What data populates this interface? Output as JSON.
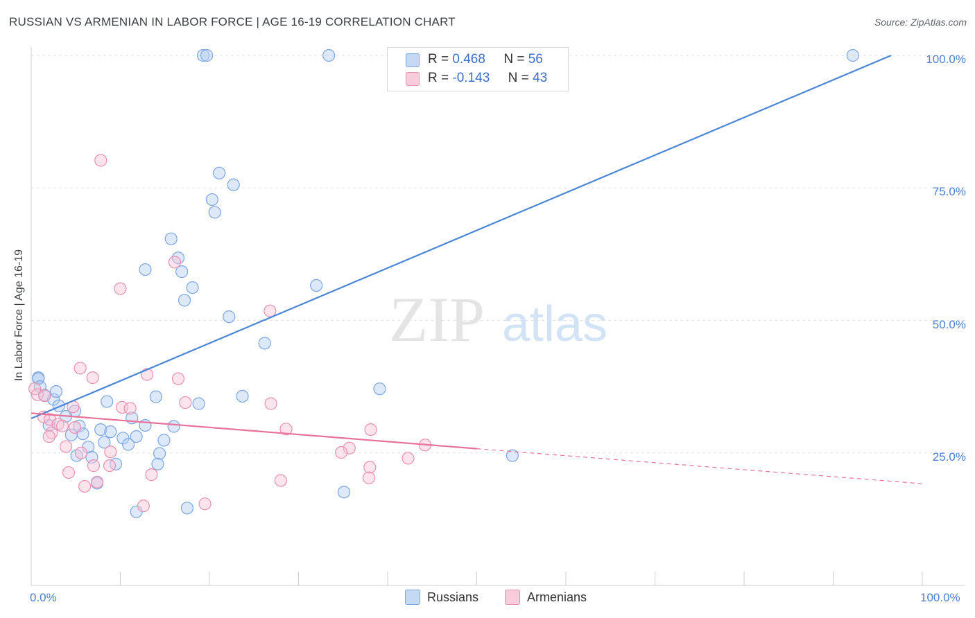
{
  "title": "RUSSIAN VS ARMENIAN IN LABOR FORCE | AGE 16-19 CORRELATION CHART",
  "source": "Source: ZipAtlas.com",
  "watermark": {
    "zip": "ZIP",
    "atlas": "atlas"
  },
  "legend_top": {
    "rows": [
      {
        "r_label": "R =",
        "r_value": "0.468",
        "n_label": "N =",
        "n_value": "56"
      },
      {
        "r_label": "R =",
        "r_value": "-0.143",
        "n_label": "N =",
        "n_value": "43"
      }
    ]
  },
  "legend_bottom": {
    "russians": "Russians",
    "armenians": "Armenians"
  },
  "chart_data": {
    "type": "scatter",
    "title": "RUSSIAN VS ARMENIAN IN LABOR FORCE | AGE 16-19 CORRELATION CHART",
    "xlabel": "",
    "ylabel": "In Labor Force | Age 16-19",
    "xlim": [
      0,
      100
    ],
    "ylim": [
      0,
      105
    ],
    "x_tick_labels": [
      "0.0%",
      "100.0%"
    ],
    "y_ticks": [
      25,
      50,
      75,
      100
    ],
    "y_tick_labels": [
      "25.0%",
      "50.0%",
      "75.0%",
      "100.0%"
    ],
    "grid": "horizontal dashed",
    "legend_placement": "top-center",
    "colors": {
      "russians": "#4a86d8",
      "armenians": "#e8709a"
    },
    "series": [
      {
        "name": "Russians",
        "color": "#4a86d8",
        "trend": {
          "x": [
            0,
            96.5
          ],
          "y": [
            31.5,
            100
          ]
        },
        "points": [
          [
            19.3,
            100
          ],
          [
            19.7,
            100
          ],
          [
            33.4,
            100
          ],
          [
            92.2,
            100
          ],
          [
            21.1,
            77.8
          ],
          [
            22.7,
            75.6
          ],
          [
            20.3,
            72.8
          ],
          [
            20.6,
            70.4
          ],
          [
            15.7,
            65.4
          ],
          [
            16.5,
            61.8
          ],
          [
            12.8,
            59.6
          ],
          [
            16.9,
            59.2
          ],
          [
            18.1,
            56.2
          ],
          [
            32.0,
            56.6
          ],
          [
            17.2,
            53.8
          ],
          [
            22.2,
            50.7
          ],
          [
            26.2,
            45.7
          ],
          [
            0.8,
            39.2
          ],
          [
            0.8,
            39.0
          ],
          [
            39.1,
            37.1
          ],
          [
            1.5,
            35.9
          ],
          [
            2.5,
            35.1
          ],
          [
            14.0,
            35.6
          ],
          [
            8.5,
            34.7
          ],
          [
            23.7,
            35.7
          ],
          [
            18.8,
            34.3
          ],
          [
            3.1,
            33.9
          ],
          [
            4.9,
            32.9
          ],
          [
            3.9,
            31.9
          ],
          [
            11.3,
            31.6
          ],
          [
            2.0,
            30.2
          ],
          [
            5.4,
            30.1
          ],
          [
            12.8,
            30.2
          ],
          [
            16.0,
            30.0
          ],
          [
            7.8,
            29.4
          ],
          [
            8.9,
            29.0
          ],
          [
            5.8,
            28.6
          ],
          [
            4.5,
            28.4
          ],
          [
            11.8,
            28.1
          ],
          [
            10.3,
            27.8
          ],
          [
            14.9,
            27.4
          ],
          [
            8.2,
            27.0
          ],
          [
            10.9,
            26.6
          ],
          [
            6.4,
            26.1
          ],
          [
            14.4,
            24.9
          ],
          [
            6.8,
            24.2
          ],
          [
            5.1,
            24.5
          ],
          [
            9.5,
            22.9
          ],
          [
            14.2,
            22.9
          ],
          [
            54.0,
            24.5
          ],
          [
            7.4,
            19.3
          ],
          [
            35.1,
            17.6
          ],
          [
            11.8,
            13.9
          ],
          [
            17.5,
            14.6
          ],
          [
            2.8,
            36.6
          ],
          [
            1.0,
            37.5
          ]
        ]
      },
      {
        "name": "Armenians",
        "color": "#e8709a",
        "trend": {
          "x": [
            0,
            50
          ],
          "y": [
            32.5,
            25.8
          ]
        },
        "trend_dashed": {
          "x": [
            50,
            100
          ],
          "y": [
            25.8,
            19.2
          ]
        },
        "points": [
          [
            7.8,
            80.2
          ],
          [
            10.0,
            56.0
          ],
          [
            16.1,
            61.0
          ],
          [
            26.8,
            51.8
          ],
          [
            5.5,
            41.0
          ],
          [
            6.9,
            39.2
          ],
          [
            13.0,
            39.8
          ],
          [
            16.5,
            39.0
          ],
          [
            0.4,
            37.1
          ],
          [
            0.7,
            36.0
          ],
          [
            1.5,
            35.8
          ],
          [
            17.3,
            34.5
          ],
          [
            26.9,
            34.3
          ],
          [
            4.7,
            33.7
          ],
          [
            10.2,
            33.6
          ],
          [
            11.1,
            33.4
          ],
          [
            1.4,
            31.8
          ],
          [
            2.1,
            31.3
          ],
          [
            3.0,
            30.4
          ],
          [
            3.5,
            30.1
          ],
          [
            4.9,
            29.8
          ],
          [
            28.6,
            29.5
          ],
          [
            38.1,
            29.4
          ],
          [
            2.3,
            28.8
          ],
          [
            2.0,
            28.1
          ],
          [
            3.9,
            26.2
          ],
          [
            5.6,
            25.0
          ],
          [
            8.9,
            25.2
          ],
          [
            35.7,
            25.9
          ],
          [
            34.8,
            25.1
          ],
          [
            38.0,
            22.3
          ],
          [
            42.3,
            24.0
          ],
          [
            44.2,
            26.5
          ],
          [
            7.0,
            22.6
          ],
          [
            8.8,
            22.6
          ],
          [
            4.2,
            21.3
          ],
          [
            13.5,
            20.9
          ],
          [
            6.0,
            18.7
          ],
          [
            7.4,
            19.5
          ],
          [
            12.6,
            15.0
          ],
          [
            19.5,
            15.4
          ],
          [
            37.9,
            20.3
          ],
          [
            28.0,
            19.8
          ]
        ]
      }
    ]
  }
}
